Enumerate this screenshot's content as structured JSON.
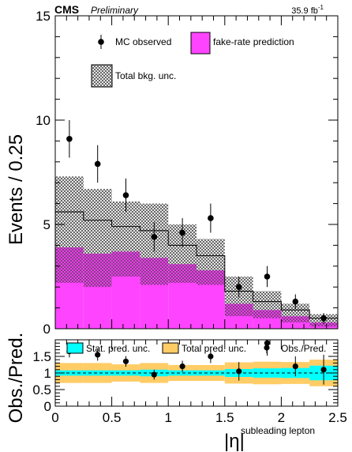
{
  "header": {
    "experiment": "CMS",
    "status": "Preliminary",
    "lumi_value": "35.9 fb",
    "lumi_exp": "-1"
  },
  "chart_data": [
    {
      "type": "bar",
      "panel": "main",
      "ylabel": "Events / 0.25",
      "xlim": [
        0,
        2.5
      ],
      "ylim": [
        0,
        15
      ],
      "yticks": [
        0,
        5,
        10,
        15
      ],
      "bin_edges": [
        0,
        0.25,
        0.5,
        0.75,
        1.0,
        1.25,
        1.5,
        1.75,
        2.0,
        2.25,
        2.5
      ],
      "series": [
        {
          "name": "fake-rate prediction",
          "kind": "histogram",
          "color": "#ff44ff",
          "values": [
            3.9,
            3.6,
            3.7,
            3.4,
            3.1,
            2.8,
            1.2,
            0.9,
            0.6,
            0.3
          ]
        },
        {
          "name": "Total bkg. unc.",
          "kind": "band",
          "pattern": "crosshatch",
          "central": [
            5.6,
            5.2,
            4.9,
            4.7,
            4.0,
            3.5,
            1.8,
            1.3,
            0.9,
            0.5
          ],
          "low": [
            3.9,
            3.6,
            3.7,
            3.4,
            3.1,
            2.8,
            1.2,
            0.9,
            0.6,
            0.3
          ],
          "high": [
            7.3,
            6.7,
            6.1,
            6.0,
            5.0,
            4.3,
            2.5,
            1.8,
            1.2,
            0.7
          ]
        },
        {
          "name": "MC observed",
          "kind": "points",
          "x": [
            0.125,
            0.375,
            0.625,
            0.875,
            1.125,
            1.375,
            1.625,
            1.875,
            2.125,
            2.375
          ],
          "y": [
            9.1,
            7.9,
            6.4,
            4.4,
            4.6,
            5.3,
            2.0,
            2.5,
            1.3,
            0.5
          ],
          "err": [
            0.9,
            0.9,
            0.8,
            0.7,
            0.7,
            0.7,
            0.5,
            0.5,
            0.35,
            0.25
          ]
        }
      ],
      "legend": [
        "MC observed",
        "fake-rate prediction",
        "Total bkg. unc."
      ]
    },
    {
      "type": "bar",
      "panel": "ratio",
      "ylabel": "Obs./Pred.",
      "xlabel": "|η|",
      "xlabel_sub": "subleading lepton",
      "xlim": [
        0,
        2.5
      ],
      "ylim": [
        0,
        2
      ],
      "yticks": [
        0,
        0.5,
        1,
        1.5
      ],
      "ytick_labels": [
        "0",
        "0.5",
        "1",
        "1.5"
      ],
      "xticks": [
        0,
        0.5,
        1,
        1.5,
        2,
        2.5
      ],
      "xtick_labels": [
        "0",
        "0.5",
        "1",
        "1.5",
        "2",
        "2.5"
      ],
      "bin_edges": [
        0,
        0.25,
        0.5,
        0.75,
        1.0,
        1.25,
        1.5,
        1.75,
        2.0,
        2.25,
        2.5
      ],
      "reference_line": 1,
      "series": [
        {
          "name": "Total pred. unc.",
          "kind": "band",
          "color": "#ffcc66",
          "low": [
            0.7,
            0.7,
            0.74,
            0.7,
            0.76,
            0.76,
            0.68,
            0.66,
            0.67,
            0.6
          ],
          "high": [
            1.3,
            1.3,
            1.26,
            1.3,
            1.24,
            1.24,
            1.32,
            1.34,
            1.33,
            1.4
          ]
        },
        {
          "name": "Stat. pred. unc.",
          "kind": "band",
          "color": "#00ffff",
          "low": [
            0.92,
            0.92,
            0.92,
            0.9,
            0.92,
            0.92,
            0.88,
            0.86,
            0.85,
            0.78
          ],
          "high": [
            1.08,
            1.08,
            1.08,
            1.1,
            1.08,
            1.08,
            1.12,
            1.14,
            1.15,
            1.22
          ]
        },
        {
          "name": "Obs./Pred.",
          "kind": "points",
          "x": [
            0.125,
            0.375,
            0.625,
            0.875,
            1.125,
            1.375,
            1.625,
            1.875,
            2.125,
            2.375
          ],
          "y": [
            1.65,
            1.55,
            1.35,
            0.95,
            1.2,
            1.5,
            1.05,
            1.9,
            1.2,
            1.1
          ],
          "err": [
            0.18,
            0.18,
            0.16,
            0.15,
            0.17,
            0.2,
            0.28,
            0.38,
            0.3,
            0.45
          ]
        }
      ],
      "legend": [
        "Stat. pred. unc.",
        "Total pred. unc.",
        "Obs./Pred."
      ]
    }
  ]
}
